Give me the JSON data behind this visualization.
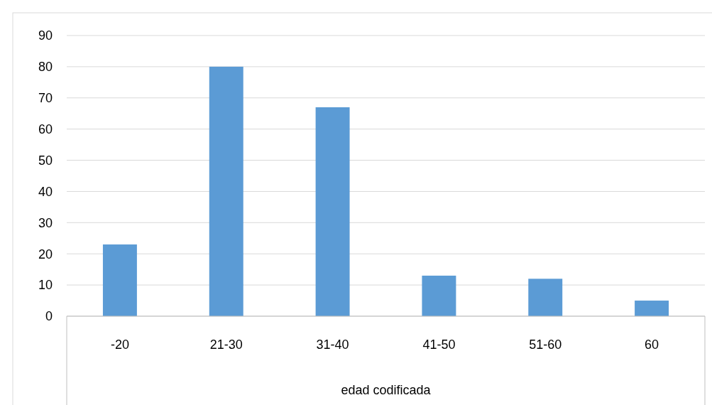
{
  "chart_data": {
    "type": "bar",
    "xlabel": "edad codificada",
    "categories": [
      "-20",
      "21-30",
      "31-40",
      "41-50",
      "51-60",
      "60"
    ],
    "values": [
      23,
      80,
      67,
      13,
      12,
      5
    ],
    "color": "#5b9bd5",
    "ylim": [
      0,
      90
    ],
    "yticks": [
      0,
      10,
      20,
      30,
      40,
      50,
      60,
      70,
      80,
      90
    ],
    "grid": "y"
  }
}
